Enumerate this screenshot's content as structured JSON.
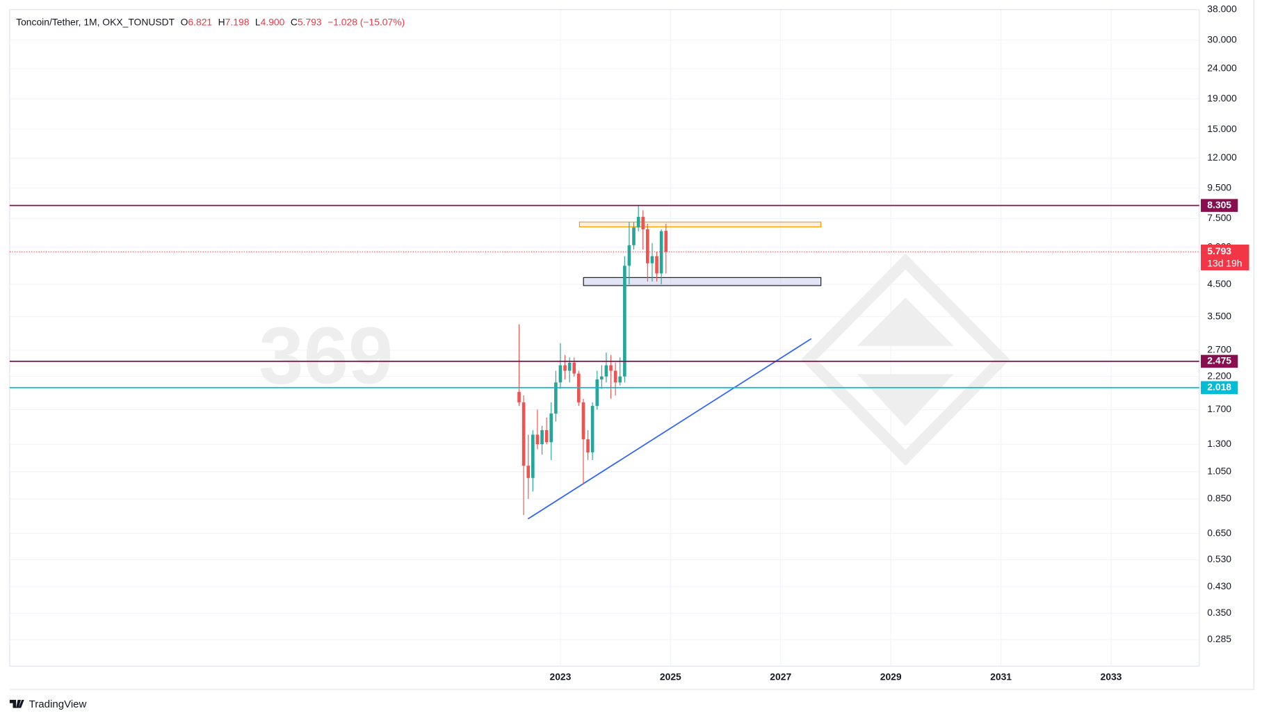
{
  "chart_data": {
    "type": "candlestick",
    "header": {
      "symbol": "Toncoin/Tether, 1M, OKX_TONUSDT",
      "o_label": "O",
      "o": "6.821",
      "h_label": "H",
      "h": "7.198",
      "l_label": "L",
      "l": "4.900",
      "c_label": "C",
      "c": "5.793",
      "change": "−1.028 (−15.07%)"
    },
    "watermark": "369",
    "countdown": "13d 19h",
    "footer": "TradingView",
    "log_scale": true,
    "grid": true,
    "up_color": "#26a69a",
    "down_color": "#ef5350",
    "x": [
      2022.25,
      2022.333,
      2022.417,
      2022.5,
      2022.583,
      2022.667,
      2022.75,
      2022.833,
      2022.917,
      2023.0,
      2023.083,
      2023.167,
      2023.25,
      2023.333,
      2023.417,
      2023.5,
      2023.583,
      2023.667,
      2023.75,
      2023.833,
      2023.917,
      2024.0,
      2024.083,
      2024.167,
      2024.25,
      2024.333,
      2024.417,
      2024.5,
      2024.583,
      2024.667,
      2024.75,
      2024.833,
      2024.917
    ],
    "open": [
      1.95,
      1.8,
      1.1,
      1.0,
      1.4,
      1.3,
      1.45,
      1.32,
      1.65,
      2.1,
      2.4,
      2.3,
      2.45,
      2.25,
      1.8,
      1.35,
      1.22,
      1.75,
      2.15,
      2.2,
      2.4,
      2.3,
      2.1,
      2.2,
      5.2,
      6.1,
      7.0,
      7.6,
      6.9,
      5.3,
      5.6,
      4.9,
      6.821
    ],
    "high": [
      3.3,
      1.9,
      1.4,
      1.45,
      1.7,
      1.5,
      1.6,
      1.8,
      2.3,
      2.85,
      2.6,
      2.55,
      2.55,
      2.3,
      1.85,
      1.45,
      1.8,
      2.3,
      2.4,
      2.65,
      2.6,
      2.45,
      2.55,
      5.6,
      7.3,
      7.3,
      8.3,
      8.0,
      7.2,
      6.2,
      5.8,
      6.9,
      7.198
    ],
    "low": [
      1.75,
      0.75,
      0.85,
      0.9,
      1.25,
      1.2,
      1.3,
      1.15,
      1.55,
      2.0,
      2.15,
      2.1,
      2.2,
      1.75,
      0.95,
      1.15,
      1.15,
      1.7,
      2.0,
      2.1,
      1.85,
      1.9,
      2.05,
      2.1,
      4.5,
      5.9,
      6.8,
      5.9,
      4.6,
      4.6,
      4.6,
      4.5,
      4.9
    ],
    "close": [
      1.8,
      1.1,
      1.0,
      1.4,
      1.3,
      1.45,
      1.32,
      1.65,
      2.1,
      2.4,
      2.3,
      2.45,
      2.25,
      1.8,
      1.35,
      1.22,
      1.75,
      2.15,
      2.2,
      2.4,
      2.3,
      2.1,
      2.2,
      5.2,
      6.1,
      7.0,
      7.6,
      6.9,
      5.3,
      5.6,
      4.9,
      6.8,
      5.793
    ],
    "levels": [
      {
        "value": 8.305,
        "color": "#880e4f"
      },
      {
        "value": 2.475,
        "color": "#880e4f"
      },
      {
        "value": 2.018,
        "color": "#00bcd4"
      }
    ],
    "price_color": "#f23645",
    "xlim": [
      2013.0,
      2034.6
    ],
    "xticks": [
      2023,
      2025,
      2027,
      2029,
      2031,
      2033
    ],
    "ylim": [
      0.232,
      38.0
    ],
    "yticks": [
      {
        "value": 38,
        "label": "38.000"
      },
      {
        "value": 30,
        "label": "30.000"
      },
      {
        "value": 24,
        "label": "24.000"
      },
      {
        "value": 19,
        "label": "19.000"
      },
      {
        "value": 15,
        "label": "15.000"
      },
      {
        "value": 12,
        "label": "12.000"
      },
      {
        "value": 9.5,
        "label": "9.500"
      },
      {
        "value": 7.5,
        "label": "7.500"
      },
      {
        "value": 6,
        "label": "6.000"
      },
      {
        "value": 4.5,
        "label": "4.500"
      },
      {
        "value": 3.5,
        "label": "3.500"
      },
      {
        "value": 2.7,
        "label": "2.700"
      },
      {
        "value": 2.2,
        "label": "2.200"
      },
      {
        "value": 1.7,
        "label": "1.700"
      },
      {
        "value": 1.3,
        "label": "1.300"
      },
      {
        "value": 1.05,
        "label": "1.050"
      },
      {
        "value": 0.85,
        "label": "0.850"
      },
      {
        "value": 0.65,
        "label": "0.650"
      },
      {
        "value": 0.53,
        "label": "0.530"
      },
      {
        "value": 0.43,
        "label": "0.430"
      },
      {
        "value": 0.35,
        "label": "0.350"
      },
      {
        "value": 0.285,
        "label": "0.285"
      }
    ]
  }
}
